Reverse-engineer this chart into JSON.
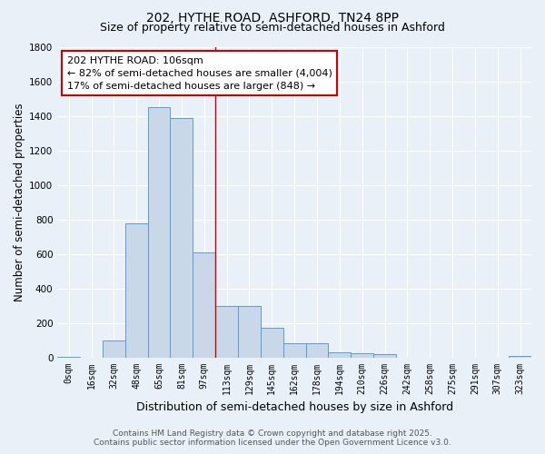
{
  "title_line1": "202, HYTHE ROAD, ASHFORD, TN24 8PP",
  "title_line2": "Size of property relative to semi-detached houses in Ashford",
  "xlabel": "Distribution of semi-detached houses by size in Ashford",
  "ylabel": "Number of semi-detached properties",
  "bar_labels": [
    "0sqm",
    "16sqm",
    "32sqm",
    "48sqm",
    "65sqm",
    "81sqm",
    "97sqm",
    "113sqm",
    "129sqm",
    "145sqm",
    "162sqm",
    "178sqm",
    "194sqm",
    "210sqm",
    "226sqm",
    "242sqm",
    "258sqm",
    "275sqm",
    "291sqm",
    "307sqm",
    "323sqm"
  ],
  "bar_values": [
    5,
    0,
    100,
    775,
    1450,
    1385,
    610,
    300,
    295,
    170,
    80,
    80,
    30,
    25,
    20,
    0,
    0,
    0,
    0,
    0,
    10
  ],
  "bar_color": "#c8d8e8",
  "bar_edge_color": "#5b9bd5",
  "annotation_title": "202 HYTHE ROAD: 106sqm",
  "annotation_line2": "← 82% of semi-detached houses are smaller (4,004)",
  "annotation_line3": "17% of semi-detached houses are larger (848) →",
  "vline_x_idx": 6.5,
  "vline_color": "#cc0000",
  "annotation_box_color": "#ffffff",
  "annotation_box_edge": "#cc0000",
  "ylim": [
    0,
    1800
  ],
  "yticks": [
    0,
    200,
    400,
    600,
    800,
    1000,
    1200,
    1400,
    1600,
    1800
  ],
  "bg_color": "#eaf0f8",
  "plot_bg_color": "#eaf0f8",
  "footer_line1": "Contains HM Land Registry data © Crown copyright and database right 2025.",
  "footer_line2": "Contains public sector information licensed under the Open Government Licence v3.0.",
  "title_fontsize": 10,
  "subtitle_fontsize": 9,
  "axis_label_fontsize": 8.5,
  "tick_fontsize": 7,
  "annotation_fontsize": 8,
  "footer_fontsize": 6.5
}
